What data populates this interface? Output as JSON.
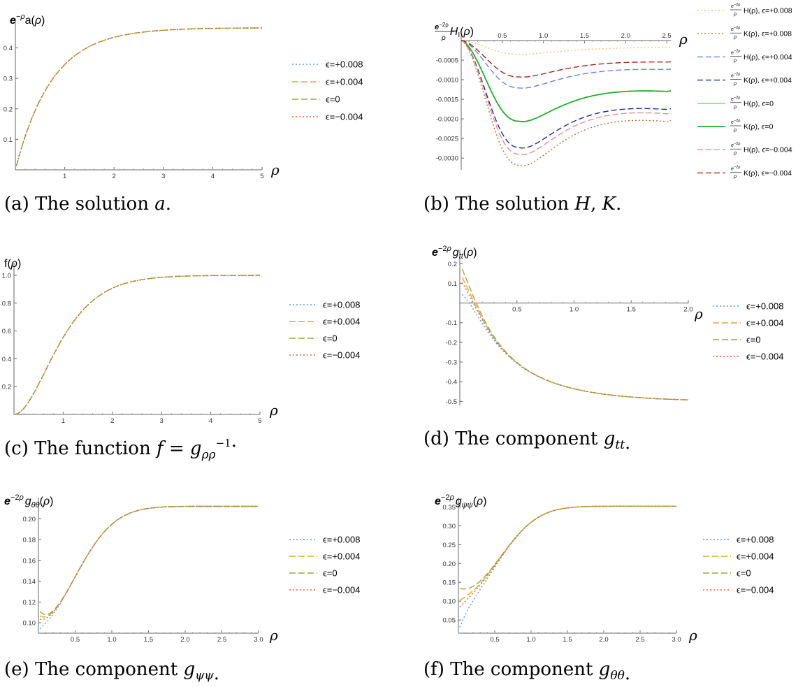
{
  "chart_data": [
    {
      "id": "a",
      "type": "line",
      "caption": "(a) The solution a.",
      "ylabel": "e^{-ρ} a(ρ)",
      "xlabel": "ρ",
      "xlim": [
        0,
        5
      ],
      "ylim": [
        0,
        0.47
      ],
      "xticks": [
        1,
        2,
        3,
        4,
        5
      ],
      "yticks": [
        0.1,
        0.2,
        0.3,
        0.4
      ],
      "series": [
        {
          "name": "ϵ=+0.008",
          "color": "#5b9bd5",
          "dash": "2,3",
          "curve": "sat",
          "params": {
            "A": 0.466,
            "k": 1.35
          }
        },
        {
          "name": "ϵ=+0.004",
          "color": "#e8a33d",
          "dash": "9,4",
          "curve": "sat",
          "params": {
            "A": 0.466,
            "k": 1.35
          }
        },
        {
          "name": "ϵ=0",
          "color": "#8fae3a",
          "dash": "9,4",
          "curve": "sat",
          "params": {
            "A": 0.466,
            "k": 1.35
          }
        },
        {
          "name": "ϵ=−0.004",
          "color": "#e0653a",
          "dash": "2,3",
          "curve": "sat",
          "params": {
            "A": 0.466,
            "k": 1.35
          }
        }
      ]
    },
    {
      "id": "b",
      "type": "line",
      "caption": "(b) The solution H, K.",
      "ylabel": "e^{-2ρ}/ρ H_I(ρ)",
      "xlabel": "ρ",
      "xlim": [
        0,
        2.55
      ],
      "ylim": [
        -0.0033,
        0
      ],
      "xticks": [
        0.5,
        1.0,
        1.5,
        2.0,
        2.5
      ],
      "xtick_labels": [
        "0.5",
        "1.0",
        "1.5",
        "2.0",
        "2.5"
      ],
      "yticks": [
        -0.0005,
        -0.001,
        -0.0015,
        -0.002,
        -0.0025,
        -0.003
      ],
      "ytick_labels": [
        "-0.0005",
        "-0.0010",
        "-0.0015",
        "-0.0020",
        "-0.0025",
        "-0.0030"
      ],
      "series": [
        {
          "name": "H(ρ), ϵ=+0.008",
          "color": "#f5c07a",
          "dash": "2,3",
          "curve": "dip",
          "params": {
            "peak": -0.00035,
            "tail": -0.00018
          }
        },
        {
          "name": "K(ρ), ϵ=+0.008",
          "color": "#c07030",
          "dash": "2,3",
          "curve": "dip",
          "params": {
            "peak": -0.00318,
            "tail": -0.00207
          }
        },
        {
          "name": "H(ρ), ϵ=+0.004",
          "color": "#6f7fe8",
          "dash": "8,4",
          "curve": "dip",
          "params": {
            "peak": -0.00121,
            "tail": -0.00074
          }
        },
        {
          "name": "K(ρ), ϵ=+0.004",
          "color": "#1a2a9c",
          "dash": "8,4",
          "curve": "dip",
          "params": {
            "peak": -0.00273,
            "tail": -0.00176
          }
        },
        {
          "name": "H(ρ), ϵ=0",
          "color": "#7be07b",
          "dash": "",
          "curve": "dip",
          "params": {
            "peak": -0.00206,
            "tail": -0.0013
          }
        },
        {
          "name": "K(ρ), ϵ=0",
          "color": "#1fae2a",
          "dash": "",
          "curve": "dip",
          "params": {
            "peak": -0.00206,
            "tail": -0.0013
          }
        },
        {
          "name": "H(ρ), ϵ=−0.004",
          "color": "#f08a8a",
          "dash": "8,4",
          "curve": "dip",
          "params": {
            "peak": -0.0029,
            "tail": -0.00187
          }
        },
        {
          "name": "K(ρ), ϵ=−0.004",
          "color": "#a82020",
          "dash": "8,4",
          "curve": "dip",
          "params": {
            "peak": -0.00093,
            "tail": -0.00055
          }
        }
      ]
    },
    {
      "id": "c",
      "type": "line",
      "caption": "(c) The function f = g_ρρ^−1.",
      "ylabel": "f(ρ)",
      "xlabel": "ρ",
      "xlim": [
        0,
        5
      ],
      "ylim": [
        0,
        1.05
      ],
      "xticks": [
        1,
        2,
        3,
        4,
        5
      ],
      "yticks": [
        0.2,
        0.4,
        0.6,
        0.8,
        1.0
      ],
      "ytick_labels": [
        "0.2",
        "0.4",
        "0.6",
        "0.8",
        "1.0"
      ],
      "series": [
        {
          "name": "ϵ=+0.008",
          "color": "#5b9bd5",
          "dash": "2,3",
          "curve": "fsig",
          "params": {}
        },
        {
          "name": "ϵ=+0.004",
          "color": "#d9a820",
          "dash": "9,4",
          "curve": "fsig",
          "params": {}
        },
        {
          "name": "ϵ=0",
          "color": "#8fae3a",
          "dash": "9,4",
          "curve": "fsig",
          "params": {}
        },
        {
          "name": "ϵ=−0.004",
          "color": "#e0653a",
          "dash": "2,3",
          "curve": "fsig",
          "params": {}
        }
      ]
    },
    {
      "id": "d",
      "type": "line",
      "caption": "(d) The component g_tt.",
      "ylabel": "e^{-2ρ} g_tt(ρ)",
      "xlabel": "ρ",
      "xlim": [
        0,
        2.0
      ],
      "ylim": [
        -0.52,
        0.24
      ],
      "xticks": [
        0.5,
        1.0,
        1.5,
        2.0
      ],
      "xtick_labels": [
        "0.5",
        "1.0",
        "1.5",
        "2.0"
      ],
      "yticks": [
        0.2,
        0.1,
        -0.1,
        -0.2,
        -0.3,
        -0.4,
        -0.5
      ],
      "series": [
        {
          "name": "ϵ=+0.008",
          "color": "#5b9bd5",
          "dash": "2,3",
          "curve": "gtt",
          "params": {
            "y0": 0.05
          }
        },
        {
          "name": "ϵ=+0.004",
          "color": "#e8a33d",
          "dash": "9,4",
          "curve": "gtt",
          "params": {
            "y0": 0.15
          }
        },
        {
          "name": "ϵ=0",
          "color": "#8fae3a",
          "dash": "9,4",
          "curve": "gtt",
          "params": {
            "y0": 0.2
          }
        },
        {
          "name": "ϵ=−0.004",
          "color": "#e0653a",
          "dash": "2,3",
          "curve": "gtt",
          "params": {
            "y0": 0.12
          }
        }
      ]
    },
    {
      "id": "e",
      "type": "line",
      "caption": "(e) The component g_ψψ.",
      "ylabel": "e^{-2ρ} g_θθ(ρ)",
      "xlabel": "ρ",
      "xlim": [
        0,
        3.0
      ],
      "ylim": [
        0.09,
        0.215
      ],
      "xticks": [
        0.5,
        1.0,
        1.5,
        2.0,
        2.5,
        3.0
      ],
      "xtick_labels": [
        "0.5",
        "1.0",
        "1.5",
        "2.0",
        "2.5",
        "3.0"
      ],
      "yticks": [
        0.1,
        0.12,
        0.14,
        0.16,
        0.18,
        0.2
      ],
      "ytick_labels": [
        "0.10",
        "0.12",
        "0.14",
        "0.16",
        "0.18",
        "0.20"
      ],
      "series": [
        {
          "name": "ϵ=+0.008",
          "color": "#5b9bd5",
          "dash": "2,3",
          "curve": "gth",
          "params": {
            "y0": 0.093
          }
        },
        {
          "name": "ϵ=+0.004",
          "color": "#d9a820",
          "dash": "9,4",
          "curve": "gth",
          "params": {
            "y0": 0.108
          }
        },
        {
          "name": "ϵ=0",
          "color": "#8fae3a",
          "dash": "9,4",
          "curve": "gth",
          "params": {
            "y0": 0.113
          }
        },
        {
          "name": "ϵ=−0.004",
          "color": "#e0653a",
          "dash": "2,3",
          "curve": "gth",
          "params": {
            "y0": 0.104
          }
        }
      ]
    },
    {
      "id": "f",
      "type": "line",
      "caption": "(f) The component g_θθ.",
      "ylabel": "e^{-2ρ} g_ψψ(ρ)",
      "xlabel": "ρ",
      "xlim": [
        0,
        3.0
      ],
      "ylim": [
        0.015,
        0.36
      ],
      "xticks": [
        0.5,
        1.0,
        1.5,
        2.0,
        2.5,
        3.0
      ],
      "xtick_labels": [
        "0.5",
        "1.0",
        "1.5",
        "2.0",
        "2.5",
        "3.0"
      ],
      "yticks": [
        0.05,
        0.1,
        0.15,
        0.2,
        0.25,
        0.3,
        0.35
      ],
      "ytick_labels": [
        "0.05",
        "0.10",
        "0.15",
        "0.20",
        "0.25",
        "0.30",
        "0.35"
      ],
      "series": [
        {
          "name": "ϵ=+0.008",
          "color": "#5b9bd5",
          "dash": "2,3",
          "curve": "gps",
          "params": {
            "y0": 0.02
          }
        },
        {
          "name": "ϵ=+0.004",
          "color": "#d9a820",
          "dash": "9,4",
          "curve": "gps",
          "params": {
            "y0": 0.1
          }
        },
        {
          "name": "ϵ=0",
          "color": "#8fae3a",
          "dash": "9,4",
          "curve": "gps",
          "params": {
            "y0": 0.135
          }
        },
        {
          "name": "ϵ=−0.004",
          "color": "#e0653a",
          "dash": "2,3",
          "curve": "gps",
          "params": {
            "y0": 0.08
          }
        }
      ]
    }
  ]
}
